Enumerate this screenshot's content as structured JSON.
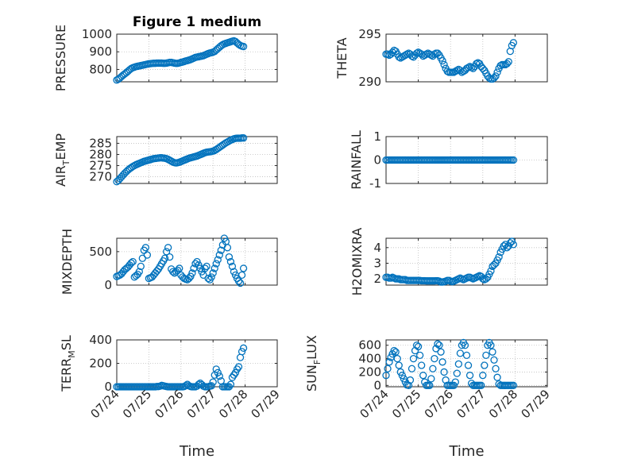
{
  "title": "Figure 1 medium",
  "marker_color": "#0072BD",
  "grid": true,
  "x_ticks": [
    "07/24",
    "07/25",
    "07/26",
    "07/27",
    "07/28",
    "07/29"
  ],
  "xlabel": "Time",
  "chart_data": [
    {
      "type": "scatter",
      "title": "Figure 1 medium",
      "ylabel": "PRESSURE",
      "ylim": [
        730,
        1000
      ],
      "yticks": [
        "800",
        "900",
        "1000"
      ],
      "xlim": [
        0,
        5
      ],
      "x": [
        0.0,
        0.05,
        0.1,
        0.15,
        0.2,
        0.25,
        0.3,
        0.35,
        0.4,
        0.45,
        0.5,
        0.55,
        0.6,
        0.65,
        0.7,
        0.75,
        0.8,
        0.85,
        0.9,
        0.95,
        1.0,
        1.05,
        1.1,
        1.15,
        1.2,
        1.25,
        1.3,
        1.35,
        1.4,
        1.45,
        1.5,
        1.55,
        1.6,
        1.65,
        1.7,
        1.75,
        1.8,
        1.85,
        1.9,
        1.95,
        2.0,
        2.05,
        2.1,
        2.15,
        2.2,
        2.25,
        2.3,
        2.35,
        2.4,
        2.45,
        2.5,
        2.55,
        2.6,
        2.65,
        2.7,
        2.75,
        2.8,
        2.85,
        2.9,
        2.95,
        3.0,
        3.05,
        3.1,
        3.15,
        3.2,
        3.25,
        3.3,
        3.35,
        3.4,
        3.45,
        3.5,
        3.55,
        3.6,
        3.65,
        3.7,
        3.75,
        3.8,
        3.85,
        3.9,
        3.95
      ],
      "y": [
        740,
        745,
        752,
        760,
        768,
        775,
        782,
        790,
        798,
        805,
        810,
        813,
        816,
        818,
        820,
        822,
        824,
        826,
        828,
        830,
        832,
        833,
        834,
        835,
        835,
        836,
        836,
        836,
        836,
        835,
        835,
        836,
        838,
        840,
        840,
        838,
        836,
        834,
        835,
        837,
        840,
        842,
        845,
        848,
        850,
        853,
        856,
        860,
        864,
        868,
        870,
        872,
        874,
        876,
        878,
        882,
        886,
        890,
        893,
        895,
        898,
        902,
        910,
        918,
        926,
        934,
        940,
        945,
        948,
        951,
        954,
        957,
        960,
        962,
        958,
        950,
        942,
        936,
        932,
        930
      ]
    },
    {
      "type": "scatter",
      "ylabel": "THETA",
      "ylim": [
        290,
        295
      ],
      "yticks": [
        "290",
        "295"
      ],
      "xlim": [
        0,
        5
      ],
      "x": [
        0.0,
        0.05,
        0.1,
        0.15,
        0.2,
        0.25,
        0.3,
        0.35,
        0.4,
        0.45,
        0.5,
        0.55,
        0.6,
        0.65,
        0.7,
        0.75,
        0.8,
        0.85,
        0.9,
        0.95,
        1.0,
        1.05,
        1.1,
        1.15,
        1.2,
        1.25,
        1.3,
        1.35,
        1.4,
        1.45,
        1.5,
        1.55,
        1.6,
        1.65,
        1.7,
        1.75,
        1.8,
        1.85,
        1.9,
        1.95,
        2.0,
        2.05,
        2.1,
        2.15,
        2.2,
        2.25,
        2.3,
        2.35,
        2.4,
        2.45,
        2.5,
        2.55,
        2.6,
        2.65,
        2.7,
        2.75,
        2.8,
        2.85,
        2.9,
        2.95,
        3.0,
        3.05,
        3.1,
        3.15,
        3.2,
        3.25,
        3.3,
        3.35,
        3.4,
        3.45,
        3.5,
        3.55,
        3.6,
        3.65,
        3.7,
        3.75,
        3.8,
        3.85,
        3.9,
        3.95
      ],
      "y": [
        292.9,
        292.9,
        292.8,
        292.9,
        293.1,
        293.3,
        293.2,
        292.9,
        292.6,
        292.5,
        292.6,
        292.7,
        292.8,
        292.9,
        293.0,
        292.9,
        292.7,
        292.6,
        292.8,
        293.0,
        293.1,
        293.0,
        292.9,
        292.7,
        292.8,
        292.9,
        293.0,
        292.9,
        292.8,
        292.7,
        292.9,
        293.0,
        293.0,
        292.8,
        292.5,
        292.2,
        291.8,
        291.4,
        291.1,
        291.0,
        291.0,
        291.0,
        291.0,
        291.1,
        291.2,
        291.3,
        291.2,
        291.0,
        291.1,
        291.2,
        291.4,
        291.5,
        291.6,
        291.5,
        291.4,
        291.6,
        291.9,
        292.0,
        291.9,
        291.6,
        291.4,
        291.2,
        290.9,
        290.6,
        290.4,
        290.3,
        290.3,
        290.4,
        290.6,
        291.0,
        291.4,
        291.7,
        291.8,
        291.8,
        291.8,
        291.9,
        292.1,
        293.2,
        293.8,
        294.1
      ]
    },
    {
      "type": "scatter",
      "ylabel": "AIR_TEMP",
      "ylim": [
        267,
        288
      ],
      "yticks": [
        "270",
        "275",
        "280",
        "285"
      ],
      "xlim": [
        0,
        5
      ],
      "x": [
        0.0,
        0.05,
        0.1,
        0.15,
        0.2,
        0.25,
        0.3,
        0.35,
        0.4,
        0.45,
        0.5,
        0.55,
        0.6,
        0.65,
        0.7,
        0.75,
        0.8,
        0.85,
        0.9,
        0.95,
        1.0,
        1.05,
        1.1,
        1.15,
        1.2,
        1.25,
        1.3,
        1.35,
        1.4,
        1.45,
        1.5,
        1.55,
        1.6,
        1.65,
        1.7,
        1.75,
        1.8,
        1.85,
        1.9,
        1.95,
        2.0,
        2.05,
        2.1,
        2.15,
        2.2,
        2.25,
        2.3,
        2.35,
        2.4,
        2.45,
        2.5,
        2.55,
        2.6,
        2.65,
        2.7,
        2.75,
        2.8,
        2.85,
        2.9,
        2.95,
        3.0,
        3.05,
        3.1,
        3.15,
        3.2,
        3.25,
        3.3,
        3.35,
        3.4,
        3.45,
        3.5,
        3.55,
        3.6,
        3.65,
        3.7,
        3.75,
        3.8,
        3.85,
        3.9,
        3.95
      ],
      "y": [
        267.8,
        268.4,
        269.2,
        270.0,
        270.8,
        271.6,
        272.3,
        273.0,
        273.6,
        274.1,
        274.6,
        275.0,
        275.4,
        275.7,
        276.0,
        276.3,
        276.6,
        276.9,
        277.1,
        277.3,
        277.5,
        277.7,
        277.9,
        278.1,
        278.2,
        278.3,
        278.4,
        278.5,
        278.5,
        278.4,
        278.3,
        278.1,
        277.8,
        277.4,
        277.0,
        276.6,
        276.3,
        276.2,
        276.3,
        276.5,
        276.8,
        277.1,
        277.4,
        277.7,
        278.0,
        278.3,
        278.5,
        278.7,
        278.9,
        279.1,
        279.3,
        279.6,
        279.9,
        280.2,
        280.5,
        280.8,
        281.0,
        281.1,
        281.2,
        281.3,
        281.5,
        281.8,
        282.2,
        282.7,
        283.2,
        283.7,
        284.2,
        284.7,
        285.2,
        285.6,
        286.0,
        286.4,
        286.7,
        287.0,
        287.2,
        287.3,
        287.3,
        287.3,
        287.4,
        287.4
      ]
    },
    {
      "type": "scatter",
      "ylabel": "RAINFALL",
      "ylim": [
        -1,
        1
      ],
      "yticks": [
        "-1",
        "0",
        "1"
      ],
      "xlim": [
        0,
        5
      ],
      "x": [
        0.0,
        0.05,
        0.1,
        0.15,
        0.2,
        0.25,
        0.3,
        0.35,
        0.4,
        0.45,
        0.5,
        0.55,
        0.6,
        0.65,
        0.7,
        0.75,
        0.8,
        0.85,
        0.9,
        0.95,
        1.0,
        1.05,
        1.1,
        1.15,
        1.2,
        1.25,
        1.3,
        1.35,
        1.4,
        1.45,
        1.5,
        1.55,
        1.6,
        1.65,
        1.7,
        1.75,
        1.8,
        1.85,
        1.9,
        1.95,
        2.0,
        2.05,
        2.1,
        2.15,
        2.2,
        2.25,
        2.3,
        2.35,
        2.4,
        2.45,
        2.5,
        2.55,
        2.6,
        2.65,
        2.7,
        2.75,
        2.8,
        2.85,
        2.9,
        2.95,
        3.0,
        3.05,
        3.1,
        3.15,
        3.2,
        3.25,
        3.3,
        3.35,
        3.4,
        3.45,
        3.5,
        3.55,
        3.6,
        3.65,
        3.7,
        3.75,
        3.8,
        3.85,
        3.9,
        3.95
      ],
      "y": [
        0,
        0,
        0,
        0,
        0,
        0,
        0,
        0,
        0,
        0,
        0,
        0,
        0,
        0,
        0,
        0,
        0,
        0,
        0,
        0,
        0,
        0,
        0,
        0,
        0,
        0,
        0,
        0,
        0,
        0,
        0,
        0,
        0,
        0,
        0,
        0,
        0,
        0,
        0,
        0,
        0,
        0,
        0,
        0,
        0,
        0,
        0,
        0,
        0,
        0,
        0,
        0,
        0,
        0,
        0,
        0,
        0,
        0,
        0,
        0,
        0,
        0,
        0,
        0,
        0,
        0,
        0,
        0,
        0,
        0,
        0,
        0,
        0,
        0,
        0,
        0,
        0,
        0,
        0,
        0
      ]
    },
    {
      "type": "scatter",
      "ylabel": "MIXDEPTH",
      "ylim": [
        0,
        700
      ],
      "yticks": [
        "0",
        "500"
      ],
      "xlim": [
        0,
        5
      ],
      "x": [
        0.0,
        0.05,
        0.1,
        0.15,
        0.2,
        0.25,
        0.3,
        0.35,
        0.4,
        0.45,
        0.5,
        0.55,
        0.6,
        0.65,
        0.7,
        0.75,
        0.8,
        0.85,
        0.9,
        0.95,
        1.0,
        1.05,
        1.1,
        1.15,
        1.2,
        1.25,
        1.3,
        1.35,
        1.4,
        1.45,
        1.5,
        1.55,
        1.6,
        1.65,
        1.7,
        1.75,
        1.8,
        1.85,
        1.9,
        1.95,
        2.0,
        2.05,
        2.1,
        2.15,
        2.2,
        2.25,
        2.3,
        2.35,
        2.4,
        2.45,
        2.5,
        2.55,
        2.6,
        2.65,
        2.7,
        2.75,
        2.8,
        2.85,
        2.9,
        2.95,
        3.0,
        3.05,
        3.1,
        3.15,
        3.2,
        3.25,
        3.3,
        3.35,
        3.4,
        3.45,
        3.5,
        3.55,
        3.6,
        3.65,
        3.7,
        3.75,
        3.8,
        3.85,
        3.9,
        3.95
      ],
      "y": [
        130,
        140,
        150,
        170,
        200,
        230,
        250,
        270,
        300,
        330,
        350,
        120,
        140,
        160,
        200,
        280,
        400,
        520,
        560,
        450,
        100,
        110,
        120,
        150,
        180,
        210,
        240,
        280,
        320,
        360,
        400,
        500,
        560,
        420,
        240,
        200,
        180,
        200,
        220,
        250,
        150,
        120,
        100,
        90,
        80,
        100,
        130,
        180,
        250,
        320,
        350,
        300,
        250,
        200,
        150,
        250,
        280,
        100,
        80,
        120,
        180,
        250,
        320,
        380,
        450,
        520,
        600,
        700,
        650,
        560,
        420,
        350,
        280,
        200,
        150,
        100,
        60,
        30,
        150,
        250
      ]
    },
    {
      "type": "scatter",
      "ylabel": "H2OMIXRA",
      "ylim": [
        1.6,
        4.6
      ],
      "yticks": [
        "2",
        "3",
        "4"
      ],
      "xlim": [
        0,
        5
      ],
      "x": [
        0.0,
        0.05,
        0.1,
        0.15,
        0.2,
        0.25,
        0.3,
        0.35,
        0.4,
        0.45,
        0.5,
        0.55,
        0.6,
        0.65,
        0.7,
        0.75,
        0.8,
        0.85,
        0.9,
        0.95,
        1.0,
        1.05,
        1.1,
        1.15,
        1.2,
        1.25,
        1.3,
        1.35,
        1.4,
        1.45,
        1.5,
        1.55,
        1.6,
        1.65,
        1.7,
        1.75,
        1.8,
        1.85,
        1.9,
        1.95,
        2.0,
        2.05,
        2.1,
        2.15,
        2.2,
        2.25,
        2.3,
        2.35,
        2.4,
        2.45,
        2.5,
        2.55,
        2.6,
        2.65,
        2.7,
        2.75,
        2.8,
        2.85,
        2.9,
        2.95,
        3.0,
        3.05,
        3.1,
        3.15,
        3.2,
        3.25,
        3.3,
        3.35,
        3.4,
        3.45,
        3.5,
        3.55,
        3.6,
        3.65,
        3.7,
        3.75,
        3.8,
        3.85,
        3.9,
        3.95
      ],
      "y": [
        2.1,
        2.1,
        2.05,
        2.05,
        2.1,
        2.05,
        2.0,
        2.0,
        2.0,
        1.95,
        1.95,
        1.95,
        1.95,
        1.9,
        1.9,
        1.9,
        1.9,
        1.9,
        1.9,
        1.9,
        1.9,
        1.9,
        1.88,
        1.88,
        1.88,
        1.87,
        1.87,
        1.87,
        1.87,
        1.87,
        1.87,
        1.88,
        1.88,
        1.85,
        1.8,
        1.8,
        1.82,
        1.85,
        1.9,
        1.9,
        1.85,
        1.82,
        1.85,
        1.9,
        1.95,
        2.0,
        2.05,
        2.0,
        1.95,
        2.0,
        2.05,
        2.1,
        2.1,
        2.05,
        2.0,
        2.05,
        2.1,
        2.15,
        2.2,
        2.15,
        2.0,
        1.95,
        2.0,
        2.1,
        2.3,
        2.5,
        2.8,
        2.9,
        3.0,
        3.2,
        3.4,
        3.7,
        3.9,
        4.1,
        4.2,
        4.0,
        4.1,
        4.3,
        4.4,
        4.2
      ]
    },
    {
      "type": "scatter",
      "ylabel": "TERR_MSL",
      "ylim": [
        0,
        400
      ],
      "yticks": [
        "0",
        "200",
        "400"
      ],
      "xlim": [
        0,
        5
      ],
      "x": [
        0.0,
        0.05,
        0.1,
        0.15,
        0.2,
        0.25,
        0.3,
        0.35,
        0.4,
        0.45,
        0.5,
        0.55,
        0.6,
        0.65,
        0.7,
        0.75,
        0.8,
        0.85,
        0.9,
        0.95,
        1.0,
        1.05,
        1.1,
        1.15,
        1.2,
        1.25,
        1.3,
        1.35,
        1.4,
        1.45,
        1.5,
        1.55,
        1.6,
        1.65,
        1.7,
        1.75,
        1.8,
        1.85,
        1.9,
        1.95,
        2.0,
        2.05,
        2.1,
        2.15,
        2.2,
        2.25,
        2.3,
        2.35,
        2.4,
        2.45,
        2.5,
        2.55,
        2.6,
        2.65,
        2.7,
        2.75,
        2.8,
        2.85,
        2.9,
        2.95,
        3.0,
        3.05,
        3.1,
        3.15,
        3.2,
        3.25,
        3.3,
        3.35,
        3.4,
        3.45,
        3.5,
        3.55,
        3.6,
        3.65,
        3.7,
        3.75,
        3.8,
        3.85,
        3.9,
        3.95
      ],
      "y": [
        0,
        0,
        0,
        0,
        0,
        0,
        0,
        0,
        0,
        0,
        0,
        0,
        0,
        0,
        0,
        0,
        0,
        0,
        0,
        0,
        0,
        0,
        0,
        0,
        0,
        2,
        2,
        5,
        12,
        8,
        5,
        2,
        0,
        0,
        0,
        0,
        0,
        0,
        0,
        0,
        0,
        0,
        2,
        10,
        20,
        8,
        2,
        0,
        0,
        0,
        5,
        20,
        30,
        18,
        5,
        0,
        0,
        0,
        5,
        8,
        40,
        100,
        150,
        120,
        90,
        50,
        0,
        0,
        0,
        0,
        0,
        20,
        80,
        100,
        120,
        150,
        170,
        250,
        300,
        330
      ]
    },
    {
      "type": "scatter",
      "ylabel": "SUN_FLUX",
      "ylim": [
        -20,
        680
      ],
      "yticks": [
        "0",
        "200",
        "400",
        "600"
      ],
      "xlim": [
        0,
        5
      ],
      "x": [
        0.0,
        0.05,
        0.1,
        0.15,
        0.2,
        0.25,
        0.3,
        0.35,
        0.4,
        0.45,
        0.5,
        0.55,
        0.6,
        0.65,
        0.7,
        0.75,
        0.8,
        0.85,
        0.9,
        0.95,
        1.0,
        1.05,
        1.1,
        1.15,
        1.2,
        1.25,
        1.3,
        1.35,
        1.4,
        1.45,
        1.5,
        1.55,
        1.6,
        1.65,
        1.7,
        1.75,
        1.8,
        1.85,
        1.9,
        1.95,
        2.0,
        2.05,
        2.1,
        2.15,
        2.2,
        2.25,
        2.3,
        2.35,
        2.4,
        2.45,
        2.5,
        2.55,
        2.6,
        2.65,
        2.7,
        2.75,
        2.8,
        2.85,
        2.9,
        2.95,
        3.0,
        3.05,
        3.1,
        3.15,
        3.2,
        3.25,
        3.3,
        3.35,
        3.4,
        3.45,
        3.5,
        3.55,
        3.6,
        3.65,
        3.7,
        3.75,
        3.8,
        3.85,
        3.9,
        3.95
      ],
      "y": [
        150,
        250,
        350,
        420,
        470,
        520,
        500,
        400,
        300,
        200,
        150,
        100,
        50,
        5,
        0,
        80,
        250,
        400,
        520,
        600,
        580,
        450,
        300,
        150,
        50,
        0,
        0,
        0,
        100,
        250,
        400,
        550,
        620,
        600,
        500,
        350,
        200,
        80,
        0,
        0,
        0,
        0,
        0,
        50,
        180,
        320,
        480,
        600,
        640,
        600,
        450,
        300,
        150,
        30,
        0,
        0,
        0,
        0,
        0,
        0,
        150,
        300,
        450,
        600,
        640,
        600,
        500,
        380,
        250,
        120,
        20,
        0,
        0,
        0,
        0,
        0,
        0,
        0,
        0,
        0
      ]
    }
  ]
}
